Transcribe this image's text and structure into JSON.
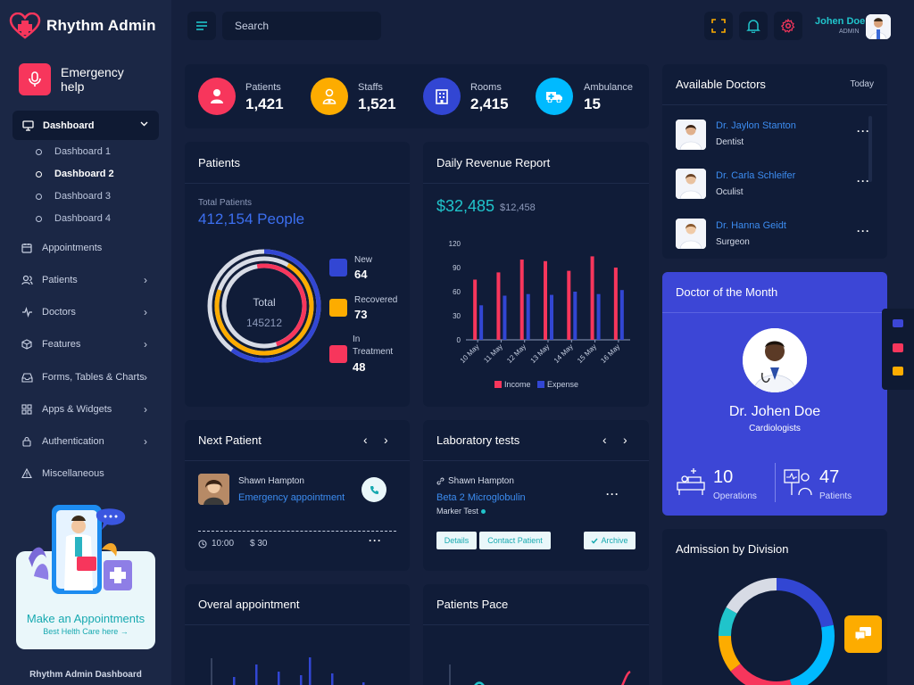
{
  "app": {
    "name": "Rhythm Admin",
    "footer": "Rhythm Admin Dashboard"
  },
  "colors": {
    "background": "#15203d",
    "card": "#101c38",
    "accent_red": "#f7365c",
    "accent_orange": "#fdac00",
    "accent_blue": "#3246d3",
    "accent_cyan": "#00baff",
    "teal": "#20c4cb"
  },
  "sidebar": {
    "emergency": "Emergency help",
    "dashboard": "Dashboard",
    "subitems": [
      "Dashboard 1",
      "Dashboard 2",
      "Dashboard 3",
      "Dashboard 4"
    ],
    "active_subitem": "Dashboard 2",
    "items": [
      {
        "label": "Appointments",
        "icon": "calendar-icon"
      },
      {
        "label": "Patients",
        "icon": "users-icon"
      },
      {
        "label": "Doctors",
        "icon": "activity-icon"
      },
      {
        "label": "Features",
        "icon": "box-icon"
      },
      {
        "label": "Forms, Tables & Charts",
        "icon": "inbox-icon"
      },
      {
        "label": "Apps & Widgets",
        "icon": "grid-icon"
      },
      {
        "label": "Authentication",
        "icon": "lock-icon"
      },
      {
        "label": "Miscellaneous",
        "icon": "alert-icon"
      }
    ],
    "promo_title": "Make an Appointments",
    "promo_sub": "Best Helth Care here →"
  },
  "header": {
    "search_placeholder": "Search",
    "user_name": "Johen Doe",
    "user_role": "ADMIN"
  },
  "stats": [
    {
      "label": "Patients",
      "value": "1,421",
      "icon": "person-icon"
    },
    {
      "label": "Staffs",
      "value": "1,521",
      "icon": "staff-icon"
    },
    {
      "label": "Rooms",
      "value": "2,415",
      "icon": "building-icon"
    },
    {
      "label": "Ambulance",
      "value": "15",
      "icon": "ambulance-icon"
    }
  ],
  "patients_card": {
    "title": "Patients",
    "total_label": "Total Patients",
    "total_value": "412,154 People",
    "center_label": "Total",
    "center_value": "145212",
    "legend": [
      {
        "label": "New",
        "value": "64",
        "color": "#3246d3"
      },
      {
        "label": "Recovered",
        "value": "73",
        "color": "#fdac00"
      },
      {
        "label": "In Treatment",
        "value": "48",
        "color": "#f7365c"
      }
    ]
  },
  "revenue_card": {
    "title": "Daily Revenue Report",
    "amount": "$32,485",
    "amount_sub": "$12,458"
  },
  "chart_data": {
    "type": "bar",
    "categories": [
      "10 May",
      "11 May",
      "12 May",
      "13 May",
      "14 May",
      "15 May",
      "16 May"
    ],
    "series": [
      {
        "name": "Income",
        "values": [
          75,
          84,
          100,
          98,
          86,
          104,
          90
        ],
        "color": "#f7365c"
      },
      {
        "name": "Expense",
        "values": [
          43,
          55,
          57,
          56,
          60,
          57,
          62
        ],
        "color": "#3246d3"
      }
    ],
    "ylim": [
      0,
      120
    ],
    "yticks": [
      "0",
      "30",
      "60",
      "90",
      "120"
    ],
    "legend": "bottom"
  },
  "next_patient": {
    "title": "Next Patient",
    "name": "Shawn Hampton",
    "type": "Emergency appointment",
    "time": "10:00",
    "price": "$ 30"
  },
  "lab_tests": {
    "title": "Laboratory tests",
    "patient": "Shawn Hampton",
    "test": "Beta 2 Microglobulin",
    "marker": "Marker Test",
    "details_btn": "Details",
    "contact_btn": "Contact Patient",
    "archive_btn": "Archive"
  },
  "overall_appointment": {
    "title": "Overal appointment"
  },
  "patients_pace": {
    "title": "Patients Pace"
  },
  "available_doctors": {
    "title": "Available Doctors",
    "filter": "Today",
    "doctors": [
      {
        "name": "Dr. Jaylon Stanton",
        "spec": "Dentist"
      },
      {
        "name": "Dr. Carla Schleifer",
        "spec": "Oculist"
      },
      {
        "name": "Dr. Hanna Geidt",
        "spec": "Surgeon"
      }
    ]
  },
  "doctor_of_month": {
    "title": "Doctor of the Month",
    "name": "Dr. Johen Doe",
    "spec": "Cardiologists",
    "operations_value": "10",
    "operations_label": "Operations",
    "patients_value": "47",
    "patients_label": "Patients"
  },
  "admission": {
    "title": "Admission by Division"
  }
}
